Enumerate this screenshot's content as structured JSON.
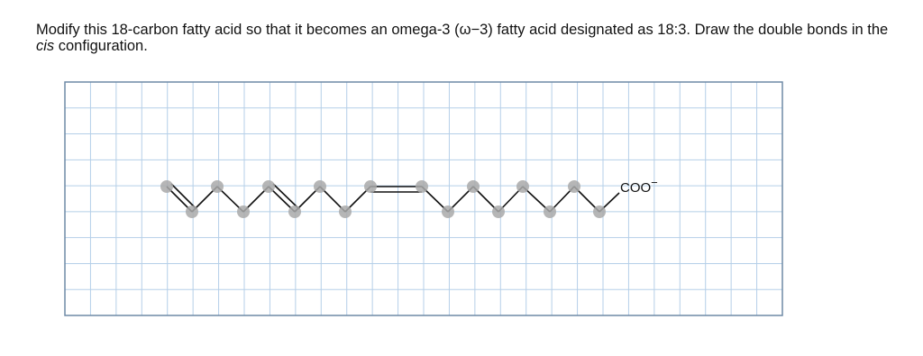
{
  "question": {
    "before": "Modify this 18-carbon fatty acid so that it becomes an omega-3 (ω−3) fatty acid designated as 18:3. Draw the double bonds in the ",
    "emphasis": "cis",
    "after": " configuration."
  },
  "molecule": {
    "label": "COO",
    "charge": "−"
  }
}
